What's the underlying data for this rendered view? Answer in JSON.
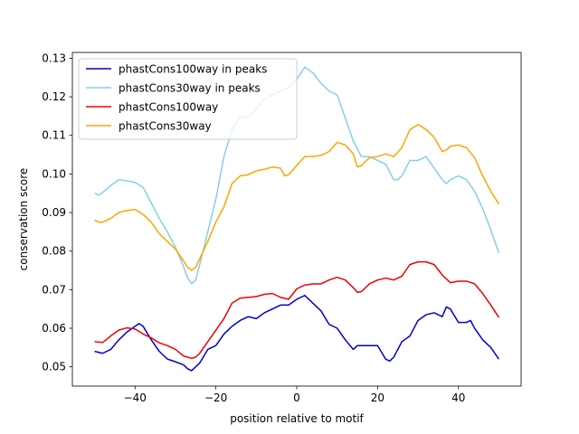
{
  "chart_data": {
    "type": "line",
    "title": "",
    "xlabel": "position relative to motif",
    "ylabel": "conservation score",
    "xlim": [
      -55.5,
      55.5
    ],
    "ylim": [
      0.045,
      0.1315
    ],
    "xticks": [
      -40,
      -20,
      0,
      20,
      40
    ],
    "xtick_labels": [
      "−40",
      "−20",
      "0",
      "20",
      "40"
    ],
    "yticks": [
      0.05,
      0.06,
      0.07,
      0.08,
      0.09,
      0.1,
      0.11,
      0.12,
      0.13
    ],
    "ytick_labels": [
      "0.05",
      "0.06",
      "0.07",
      "0.08",
      "0.09",
      "0.10",
      "0.11",
      "0.12",
      "0.13"
    ],
    "grid": false,
    "legend_position": "upper-left",
    "series": [
      {
        "name": "phastCons100way in peaks",
        "color": "#0000cd",
        "x": [
          -50,
          -48,
          -46,
          -44,
          -42,
          -40,
          -39,
          -38,
          -36,
          -34,
          -32,
          -30,
          -28,
          -27,
          -26,
          -25,
          -24,
          -22,
          -20,
          -18,
          -16,
          -14,
          -12,
          -10,
          -8,
          -6,
          -4,
          -2,
          0,
          2,
          4,
          6,
          8,
          10,
          12,
          14,
          15,
          16,
          18,
          20,
          22,
          23,
          24,
          26,
          28,
          30,
          32,
          34,
          36,
          37,
          38,
          40,
          42,
          43,
          44,
          46,
          48,
          50
        ],
        "values": [
          0.054,
          0.0535,
          0.0545,
          0.057,
          0.059,
          0.0605,
          0.0612,
          0.0605,
          0.057,
          0.054,
          0.052,
          0.0513,
          0.0505,
          0.0495,
          0.049,
          0.05,
          0.051,
          0.0545,
          0.0555,
          0.0585,
          0.0605,
          0.062,
          0.063,
          0.0625,
          0.064,
          0.065,
          0.066,
          0.066,
          0.0675,
          0.0685,
          0.0665,
          0.0645,
          0.061,
          0.06,
          0.057,
          0.0545,
          0.0555,
          0.0555,
          0.0555,
          0.0555,
          0.052,
          0.0515,
          0.0525,
          0.0565,
          0.058,
          0.062,
          0.0635,
          0.064,
          0.063,
          0.0655,
          0.065,
          0.0615,
          0.0615,
          0.062,
          0.06,
          0.057,
          0.055,
          0.052
        ]
      },
      {
        "name": "phastCons30way in peaks",
        "color": "#87ceeb",
        "x": [
          -50,
          -49,
          -48,
          -46,
          -44,
          -42,
          -40,
          -38,
          -36,
          -34,
          -32,
          -30,
          -29,
          -28,
          -27,
          -26,
          -25,
          -24,
          -22,
          -20,
          -18,
          -16,
          -14,
          -12,
          -10,
          -8,
          -6,
          -4,
          -2,
          0,
          2,
          4,
          6,
          8,
          10,
          12,
          14,
          16,
          18,
          20,
          22,
          24,
          25,
          26,
          28,
          30,
          32,
          34,
          36,
          37,
          38,
          40,
          42,
          44,
          46,
          48,
          50
        ],
        "values": [
          0.095,
          0.0945,
          0.0952,
          0.097,
          0.0985,
          0.0982,
          0.0978,
          0.0965,
          0.0925,
          0.0885,
          0.085,
          0.081,
          0.0785,
          0.076,
          0.073,
          0.0715,
          0.0725,
          0.0765,
          0.085,
          0.0935,
          0.1045,
          0.1115,
          0.115,
          0.1145,
          0.117,
          0.1195,
          0.1205,
          0.1215,
          0.1225,
          0.1245,
          0.1277,
          0.1262,
          0.1235,
          0.1215,
          0.1205,
          0.1145,
          0.1085,
          0.1045,
          0.1045,
          0.1035,
          0.1025,
          0.0985,
          0.0985,
          0.0995,
          0.1035,
          0.1035,
          0.1045,
          0.1015,
          0.0985,
          0.0975,
          0.0985,
          0.0995,
          0.0985,
          0.0955,
          0.091,
          0.0855,
          0.0795
        ]
      },
      {
        "name": "phastCons100way",
        "color": "#ee0000",
        "x": [
          -50,
          -48,
          -46,
          -44,
          -42,
          -40,
          -38,
          -36,
          -34,
          -32,
          -30,
          -28,
          -26,
          -25,
          -24,
          -22,
          -20,
          -18,
          -16,
          -14,
          -12,
          -10,
          -8,
          -6,
          -4,
          -2,
          0,
          2,
          4,
          6,
          8,
          10,
          12,
          14,
          15,
          16,
          18,
          20,
          22,
          24,
          26,
          28,
          30,
          32,
          34,
          36,
          38,
          40,
          42,
          44,
          46,
          48,
          50
        ],
        "values": [
          0.0565,
          0.0563,
          0.058,
          0.0595,
          0.0601,
          0.0598,
          0.0585,
          0.0575,
          0.0562,
          0.0555,
          0.0545,
          0.0528,
          0.0522,
          0.0525,
          0.0535,
          0.0565,
          0.0595,
          0.0625,
          0.0665,
          0.0678,
          0.068,
          0.0682,
          0.0688,
          0.069,
          0.068,
          0.0675,
          0.0702,
          0.0712,
          0.0715,
          0.0715,
          0.0725,
          0.0732,
          0.0725,
          0.0705,
          0.0693,
          0.0695,
          0.0715,
          0.0725,
          0.073,
          0.0725,
          0.0735,
          0.0765,
          0.0772,
          0.0772,
          0.0765,
          0.0738,
          0.0718,
          0.0722,
          0.0722,
          0.0715,
          0.069,
          0.066,
          0.0628
        ]
      },
      {
        "name": "phastCons30way",
        "color": "#ffa500",
        "x": [
          -50,
          -49,
          -48,
          -46,
          -44,
          -42,
          -40,
          -38,
          -36,
          -34,
          -32,
          -30,
          -28,
          -27,
          -26,
          -25,
          -24,
          -22,
          -20,
          -18,
          -16,
          -14,
          -12,
          -10,
          -8,
          -6,
          -4,
          -3,
          -2,
          0,
          2,
          4,
          6,
          8,
          10,
          12,
          14,
          15,
          16,
          18,
          20,
          22,
          24,
          26,
          28,
          30,
          32,
          34,
          36,
          37,
          38,
          40,
          42,
          44,
          46,
          48,
          50
        ],
        "values": [
          0.088,
          0.0875,
          0.0875,
          0.0885,
          0.09,
          0.0905,
          0.0908,
          0.0895,
          0.0875,
          0.0845,
          0.0825,
          0.0805,
          0.0775,
          0.0758,
          0.075,
          0.0758,
          0.078,
          0.0825,
          0.0875,
          0.0915,
          0.0975,
          0.0995,
          0.0998,
          0.1008,
          0.1012,
          0.1018,
          0.1015,
          0.0995,
          0.0998,
          0.1022,
          0.1045,
          0.1045,
          0.1048,
          0.1058,
          0.1082,
          0.1075,
          0.1052,
          0.1018,
          0.1022,
          0.1042,
          0.1045,
          0.1052,
          0.1045,
          0.1068,
          0.1115,
          0.1128,
          0.1115,
          0.1095,
          0.1058,
          0.1062,
          0.1072,
          0.1075,
          0.1068,
          0.1042,
          0.0995,
          0.0955,
          0.0922
        ]
      }
    ]
  }
}
